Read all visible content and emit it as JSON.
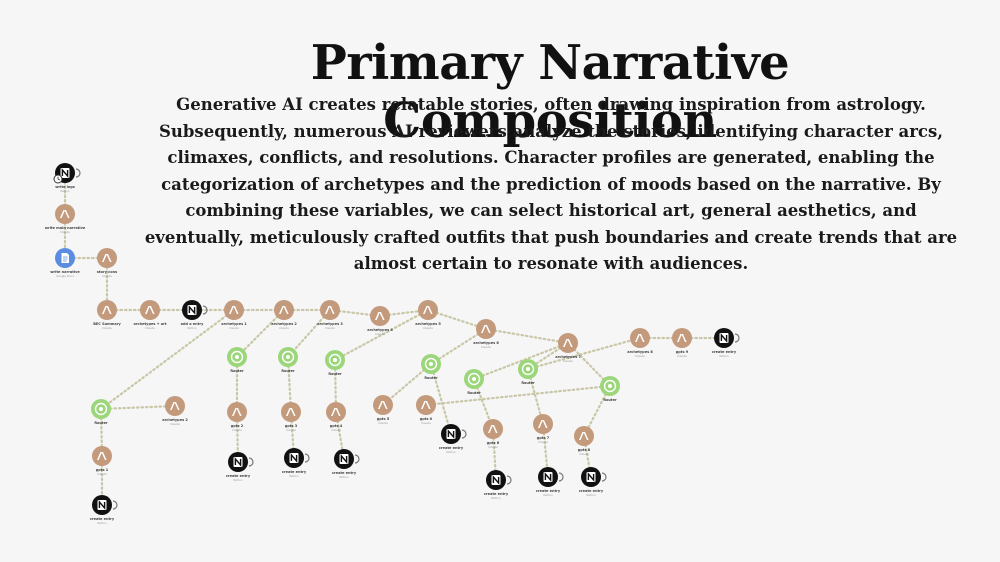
{
  "header": {
    "title": "Primary Narrative Composition",
    "description": "Generative AI creates relatable stories, often drawing inspiration from astrology. Subsequently, numerous AI reviewers analyze the stories, identifying character arcs, climaxes, conflicts, and resolutions. Character profiles are generated, enabling the categorization of archetypes and the prediction of moods based on the narrative. By combining these variables, we can select historical art, general aesthetics, and eventually, meticulously crafted outfits that push boundaries and create trends that are almost certain to resonate with audiences."
  },
  "colors": {
    "claude": "#c49a7c",
    "router": "#9cd67a",
    "notion": "#111111",
    "docs": "#5a8de0",
    "connector": "#c9c7a8"
  },
  "workflow": {
    "nodes": [
      {
        "id": "n1",
        "kind": "notion",
        "icon": "notion-icon",
        "label": "write logs",
        "sub": "Notion"
      },
      {
        "id": "n2",
        "kind": "claude",
        "icon": "anthropic-icon",
        "label": "write main narrative",
        "sub": "Claude"
      },
      {
        "id": "n3",
        "kind": "docs",
        "icon": "document-icon",
        "label": "write narrative",
        "sub": "Google Docs"
      },
      {
        "id": "n4",
        "kind": "claude",
        "icon": "anthropic-icon",
        "label": "story cons",
        "sub": "Claude"
      },
      {
        "id": "n5",
        "kind": "claude",
        "icon": "anthropic-icon",
        "label": "BEC Summary",
        "sub": "Claude"
      },
      {
        "id": "n6",
        "kind": "claude",
        "icon": "anthropic-icon",
        "label": "archetypes + art",
        "sub": "Claude"
      },
      {
        "id": "n7",
        "kind": "notion",
        "icon": "notion-icon",
        "label": "add a entry",
        "sub": "Notion"
      },
      {
        "id": "n8",
        "kind": "claude",
        "icon": "anthropic-icon",
        "label": "archetypes 1",
        "sub": "Claude"
      },
      {
        "id": "n9",
        "kind": "claude",
        "icon": "anthropic-icon",
        "label": "archetypes 2",
        "sub": "Claude"
      },
      {
        "id": "n10",
        "kind": "claude",
        "icon": "anthropic-icon",
        "label": "archetypes 3",
        "sub": "Claude"
      },
      {
        "id": "n11",
        "kind": "claude",
        "icon": "anthropic-icon",
        "label": "archetypes 4",
        "sub": "Claude"
      },
      {
        "id": "n12",
        "kind": "claude",
        "icon": "anthropic-icon",
        "label": "archetypes 5",
        "sub": "Claude"
      },
      {
        "id": "n13",
        "kind": "claude",
        "icon": "anthropic-icon",
        "label": "archetypes 6",
        "sub": "Claude"
      },
      {
        "id": "n14",
        "kind": "claude",
        "icon": "anthropic-icon",
        "label": "archetypes 7",
        "sub": "Claude"
      },
      {
        "id": "n15",
        "kind": "claude",
        "icon": "anthropic-icon",
        "label": "archetypes 8",
        "sub": "Claude"
      },
      {
        "id": "n16",
        "kind": "claude",
        "icon": "anthropic-icon",
        "label": "gpts 9",
        "sub": "Claude"
      },
      {
        "id": "n17",
        "kind": "notion",
        "icon": "notion-icon",
        "label": "create entry",
        "sub": "Notion"
      },
      {
        "id": "n18",
        "kind": "router",
        "icon": "router-icon",
        "label": "Router",
        "sub": ""
      },
      {
        "id": "n19",
        "kind": "router",
        "icon": "router-icon",
        "label": "Router",
        "sub": ""
      },
      {
        "id": "n20",
        "kind": "router",
        "icon": "router-icon",
        "label": "Router",
        "sub": ""
      },
      {
        "id": "n21",
        "kind": "router",
        "icon": "router-icon",
        "label": "Router",
        "sub": ""
      },
      {
        "id": "n22",
        "kind": "router",
        "icon": "router-icon",
        "label": "Router",
        "sub": ""
      },
      {
        "id": "n23",
        "kind": "router",
        "icon": "router-icon",
        "label": "Router",
        "sub": ""
      },
      {
        "id": "n24",
        "kind": "router",
        "icon": "router-icon",
        "label": "Router",
        "sub": ""
      },
      {
        "id": "n25",
        "kind": "router",
        "icon": "router-icon",
        "label": "Router",
        "sub": ""
      },
      {
        "id": "n26",
        "kind": "claude",
        "icon": "anthropic-icon",
        "label": "archetypes 2",
        "sub": "Claude"
      },
      {
        "id": "n27",
        "kind": "claude",
        "icon": "anthropic-icon",
        "label": "gpts 1",
        "sub": "Claude"
      },
      {
        "id": "n28",
        "kind": "claude",
        "icon": "anthropic-icon",
        "label": "gpts 2",
        "sub": "Claude"
      },
      {
        "id": "n29",
        "kind": "claude",
        "icon": "anthropic-icon",
        "label": "gpts 3",
        "sub": "Claude"
      },
      {
        "id": "n30",
        "kind": "claude",
        "icon": "anthropic-icon",
        "label": "gpts 4",
        "sub": "Claude"
      },
      {
        "id": "n31",
        "kind": "notion",
        "icon": "notion-icon",
        "label": "create entry",
        "sub": "Notion"
      },
      {
        "id": "n32",
        "kind": "claude",
        "icon": "anthropic-icon",
        "label": "gpts 5",
        "sub": "Claude"
      },
      {
        "id": "n33",
        "kind": "claude",
        "icon": "anthropic-icon",
        "label": "gpts 6",
        "sub": "Claude"
      },
      {
        "id": "n34",
        "kind": "claude",
        "icon": "anthropic-icon",
        "label": "gpts 7",
        "sub": "Claude"
      },
      {
        "id": "n35",
        "kind": "claude",
        "icon": "anthropic-icon",
        "label": "gpts 8",
        "sub": "Claude"
      },
      {
        "id": "n36",
        "kind": "claude",
        "icon": "anthropic-icon",
        "label": "gpts 0",
        "sub": "Claude"
      },
      {
        "id": "n37",
        "kind": "notion",
        "icon": "notion-icon",
        "label": "create entry",
        "sub": "Notion"
      },
      {
        "id": "n38",
        "kind": "notion",
        "icon": "notion-icon",
        "label": "create entry",
        "sub": "Notion"
      },
      {
        "id": "n39",
        "kind": "notion",
        "icon": "notion-icon",
        "label": "create entry",
        "sub": "Notion"
      },
      {
        "id": "n40",
        "kind": "notion",
        "icon": "notion-icon",
        "label": "create entry",
        "sub": "Notion"
      },
      {
        "id": "n41",
        "kind": "notion",
        "icon": "notion-icon",
        "label": "create entry",
        "sub": "Notion"
      },
      {
        "id": "n42",
        "kind": "notion",
        "icon": "notion-icon",
        "label": "create entry",
        "sub": "Notion"
      },
      {
        "id": "n43",
        "kind": "notion",
        "icon": "notion-icon",
        "label": "create entry",
        "sub": "Notion"
      }
    ],
    "edges": [
      [
        "n1",
        "n2"
      ],
      [
        "n2",
        "n3"
      ],
      [
        "n3",
        "n4"
      ],
      [
        "n4",
        "n5"
      ],
      [
        "n5",
        "n6"
      ],
      [
        "n6",
        "n7"
      ],
      [
        "n7",
        "n8"
      ],
      [
        "n8",
        "n25"
      ],
      [
        "n25",
        "n26"
      ],
      [
        "n25",
        "n27"
      ],
      [
        "n27",
        "n31"
      ],
      [
        "n8",
        "n9"
      ],
      [
        "n9",
        "n18"
      ],
      [
        "n18",
        "n28"
      ],
      [
        "n28",
        "n37"
      ],
      [
        "n9",
        "n10"
      ],
      [
        "n10",
        "n19"
      ],
      [
        "n19",
        "n29"
      ],
      [
        "n29",
        "n38"
      ],
      [
        "n10",
        "n11"
      ],
      [
        "n11",
        "n12"
      ],
      [
        "n12",
        "n20"
      ],
      [
        "n20",
        "n30"
      ],
      [
        "n30",
        "n39"
      ],
      [
        "n12",
        "n13"
      ],
      [
        "n13",
        "n21"
      ],
      [
        "n21",
        "n40"
      ],
      [
        "n21",
        "n32"
      ],
      [
        "n13",
        "n14"
      ],
      [
        "n14",
        "n22"
      ],
      [
        "n22",
        "n33"
      ],
      [
        "n33",
        "n41"
      ],
      [
        "n14",
        "n23"
      ],
      [
        "n23",
        "n34"
      ],
      [
        "n34",
        "n42"
      ],
      [
        "n23",
        "n15"
      ],
      [
        "n15",
        "n16"
      ],
      [
        "n16",
        "n17"
      ],
      [
        "n14",
        "n24"
      ],
      [
        "n24",
        "n35"
      ],
      [
        "n35",
        "n43"
      ],
      [
        "n24",
        "n36"
      ]
    ]
  }
}
